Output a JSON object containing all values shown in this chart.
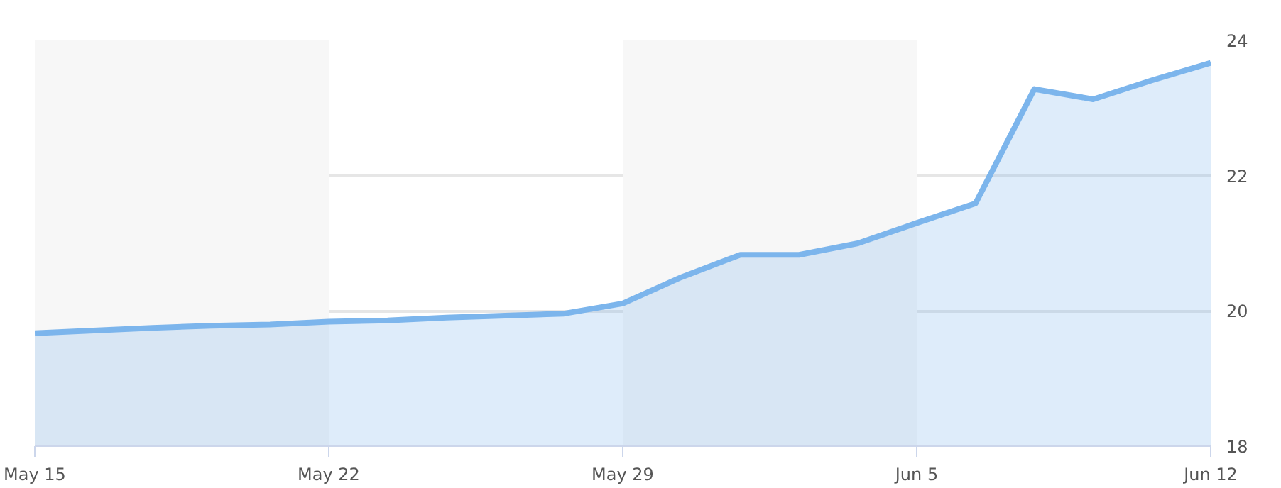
{
  "chart_data": {
    "type": "area",
    "categories": [
      "May 15",
      null,
      null,
      null,
      null,
      "May 22",
      null,
      null,
      null,
      null,
      "May 29",
      null,
      null,
      null,
      null,
      "Jun 5",
      null,
      null,
      null,
      null,
      "Jun 12"
    ],
    "series": [
      {
        "color": "#7cb5ec",
        "values": [
          19.67,
          19.71,
          19.75,
          19.78,
          19.8,
          19.84,
          19.86,
          19.9,
          19.93,
          19.96,
          20.11,
          20.5,
          20.83,
          20.83,
          21.0,
          21.3,
          21.59,
          23.28,
          23.13,
          23.41,
          23.67
        ]
      }
    ],
    "ylim": [
      18,
      24
    ],
    "yticks": [
      18,
      20,
      22,
      24
    ],
    "grid": "y",
    "bands": [
      {
        "axis": "x",
        "from": "May 15",
        "to": "May 22",
        "color": "#f7f7f7"
      },
      {
        "axis": "x",
        "from": "May 29",
        "to": "Jun 5",
        "color": "#f7f7f7"
      }
    ]
  }
}
